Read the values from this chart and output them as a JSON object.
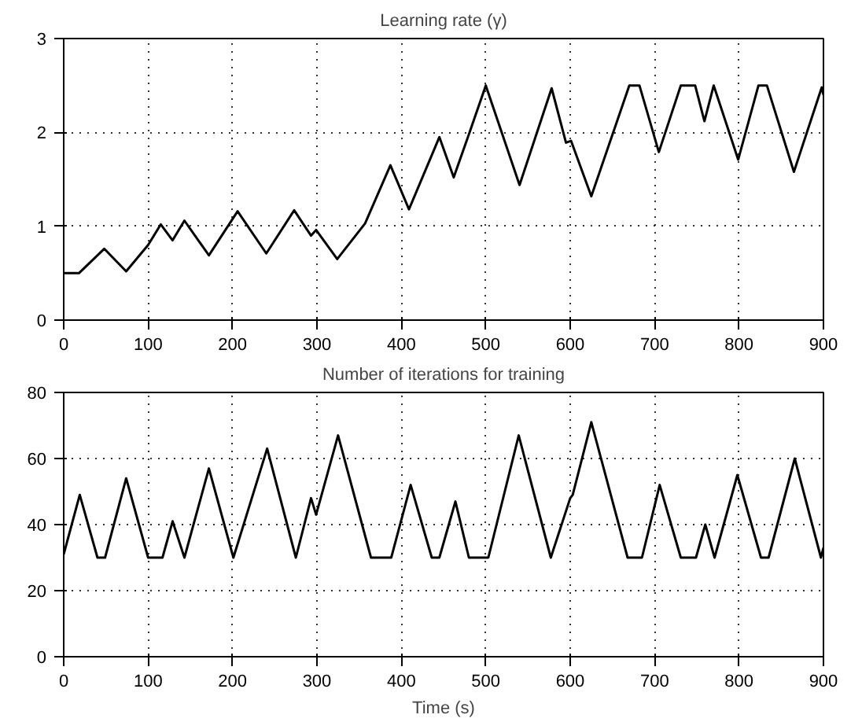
{
  "chart_data": [
    {
      "type": "line",
      "title": "Learning rate (γ)",
      "xlim": [
        0,
        900
      ],
      "ylim": [
        0,
        3
      ],
      "xticks": [
        0,
        100,
        200,
        300,
        400,
        500,
        600,
        700,
        800,
        900
      ],
      "yticks": [
        0,
        1,
        2,
        3
      ],
      "grid": true,
      "series": [
        {
          "color": "#000000",
          "x": [
            0,
            18,
            48,
            74,
            100,
            115,
            129,
            143,
            172,
            206,
            240,
            273,
            293,
            299,
            324,
            357,
            387,
            409,
            445,
            462,
            480,
            500,
            540,
            578,
            595,
            601,
            625,
            670,
            682,
            705,
            731,
            748,
            759,
            770,
            799,
            823,
            833,
            865,
            898,
            900
          ],
          "values": [
            0.5,
            0.5,
            0.76,
            0.52,
            0.8,
            1.02,
            0.85,
            1.06,
            0.69,
            1.16,
            0.71,
            1.17,
            0.9,
            0.96,
            0.65,
            1.03,
            1.65,
            1.18,
            1.95,
            1.52,
            1.98,
            2.5,
            1.44,
            2.47,
            1.89,
            1.91,
            1.32,
            2.5,
            2.5,
            1.79,
            2.5,
            2.5,
            2.12,
            2.5,
            1.71,
            2.5,
            2.5,
            1.58,
            2.48,
            2.4
          ]
        }
      ]
    },
    {
      "type": "line",
      "title": "Number of iterations for training",
      "xlabel": "Time (s)",
      "xlim": [
        0,
        900
      ],
      "ylim": [
        0,
        80
      ],
      "xticks": [
        0,
        100,
        200,
        300,
        400,
        500,
        600,
        700,
        800,
        900
      ],
      "yticks": [
        0,
        20,
        40,
        60,
        80
      ],
      "grid": true,
      "series": [
        {
          "color": "#000000",
          "x": [
            0,
            19,
            40,
            49,
            74,
            100,
            117,
            129,
            143,
            172,
            201,
            241,
            275,
            293,
            299,
            325,
            364,
            388,
            411,
            436,
            445,
            464,
            480,
            503,
            539,
            577,
            600,
            603,
            625,
            668,
            685,
            706,
            731,
            749,
            760,
            771,
            798,
            826,
            835,
            866,
            897,
            900
          ],
          "values": [
            31,
            49,
            30,
            30,
            54,
            30,
            30,
            41,
            30,
            57,
            30,
            63,
            30,
            48,
            43,
            67,
            30,
            30,
            52,
            30,
            30,
            47,
            30,
            30,
            67,
            30,
            48,
            49,
            71,
            30,
            30,
            52,
            30,
            30,
            40,
            30,
            55,
            30,
            30,
            60,
            30,
            33
          ]
        }
      ]
    }
  ]
}
